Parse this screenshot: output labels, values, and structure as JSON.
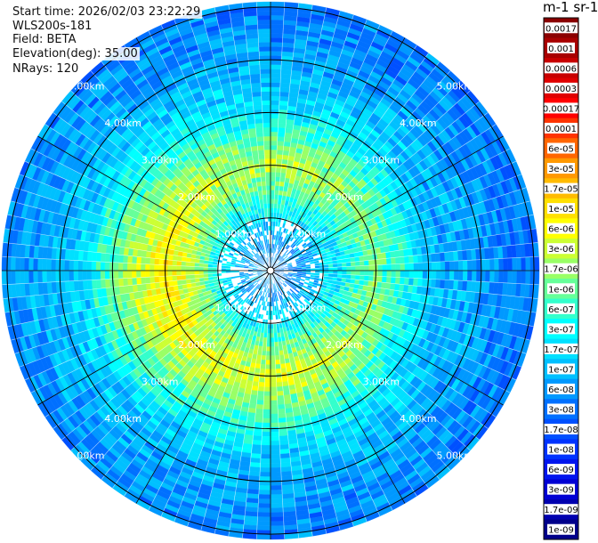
{
  "header": {
    "start_time": "Start time: 2026/02/03 23:22:29",
    "device": "WLS200s-181",
    "field": "Field: BETA",
    "elevation": "Elevation(deg): 35.00",
    "nrays": "NRays: 120"
  },
  "colorbar": {
    "title": "m-1 sr-1",
    "tick_labels": [
      "0.0017",
      "0.001",
      "0.0006",
      "0.0003",
      "0.00017",
      "0.0001",
      "6e-05",
      "3e-05",
      "1.7e-05",
      "1e-05",
      "6e-06",
      "3e-06",
      "1.7e-06",
      "1e-06",
      "6e-07",
      "3e-07",
      "1.7e-07",
      "1e-07",
      "6e-08",
      "3e-08",
      "1.7e-08",
      "1e-08",
      "6e-09",
      "3e-09",
      "1.7e-09",
      "1e-09"
    ],
    "colors": [
      "#8b0000",
      "#a80000",
      "#c80000",
      "#e00000",
      "#ff0000",
      "#ff3300",
      "#ff6600",
      "#ff9900",
      "#ffbb00",
      "#ffe000",
      "#ffff00",
      "#ccff33",
      "#99ff66",
      "#66ff99",
      "#33ffcc",
      "#00ffff",
      "#00e0ff",
      "#00c0ff",
      "#0099ff",
      "#0070ff",
      "#0050ff",
      "#0033ff",
      "#0015ee",
      "#0000d4",
      "#0000b0",
      "#00008b"
    ]
  },
  "chart_data": {
    "type": "heatmap",
    "projection": "polar PPI scan",
    "field": "BETA",
    "units": "m-1 sr-1",
    "n_rays": 120,
    "range_rings_km": [
      1.0,
      2.0,
      3.0,
      4.0,
      5.0
    ],
    "range_ring_labels": [
      "1.00km",
      "2.00km",
      "3.00km",
      "4.00km",
      "5.00km"
    ],
    "max_range_km": 5.1,
    "spoke_interval_deg": 30,
    "color_scale": "log",
    "value_range": [
      1e-09,
      0.0017
    ],
    "radial_profile": [
      {
        "range_km": 0.5,
        "beta": 6e-08
      },
      {
        "range_km": 1.0,
        "beta": 2e-07
      },
      {
        "range_km": 1.5,
        "beta": 1e-06
      },
      {
        "range_km": 2.0,
        "beta": 3e-06
      },
      {
        "range_km": 2.5,
        "beta": 1e-06
      },
      {
        "range_km": 3.0,
        "beta": 3e-07
      },
      {
        "range_km": 3.5,
        "beta": 1.2e-07
      },
      {
        "range_km": 4.0,
        "beta": 8e-08
      },
      {
        "range_km": 4.5,
        "beta": 5e-08
      },
      {
        "range_km": 5.0,
        "beta": 4e-08
      }
    ]
  }
}
